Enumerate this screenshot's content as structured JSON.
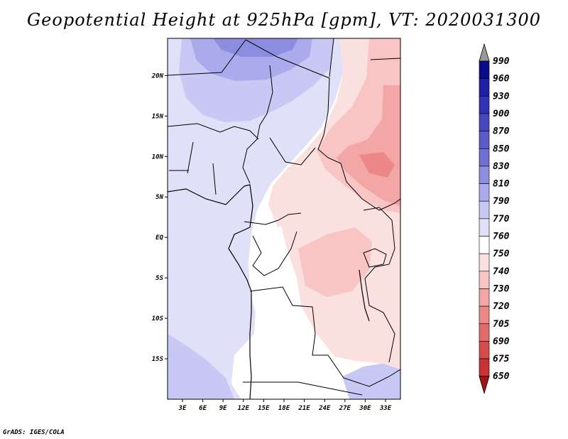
{
  "title": "Geopotential Height at 925hPa [gpm], VT: 2020031300",
  "credit": "GrADS: IGES/COLA",
  "lon_ticks": [
    "3E",
    "6E",
    "9E",
    "12E",
    "15E",
    "18E",
    "21E",
    "24E",
    "27E",
    "30E",
    "33E"
  ],
  "lat_ticks": [
    "20N",
    "15N",
    "10N",
    "5N",
    "EQ",
    "5S",
    "10S",
    "15S"
  ],
  "legend": {
    "levels": [
      "990",
      "960",
      "930",
      "900",
      "870",
      "850",
      "830",
      "810",
      "790",
      "770",
      "760",
      "750",
      "740",
      "730",
      "720",
      "705",
      "690",
      "675",
      "650"
    ],
    "colors": [
      "#0a0a8c",
      "#1e1ea8",
      "#3232b4",
      "#4646be",
      "#5a5ac8",
      "#7070d4",
      "#8c8ce0",
      "#aaaaec",
      "#c8c8f4",
      "#e0e0f8",
      "#ffffff",
      "#fbe0e0",
      "#f8c4c4",
      "#f2a6a6",
      "#ec8888",
      "#e26a6a",
      "#d64c4c",
      "#c83232",
      "#b41e1e"
    ],
    "top_arrow_color": "#999999",
    "bottom_arrow_color": "#a01414"
  },
  "chart_data": {
    "type": "heatmap",
    "title": "Geopotential Height at 925hPa [gpm], VT: 2020031300",
    "variable": "Geopotential Height",
    "level": "925hPa",
    "units": "gpm",
    "valid_time": "2020031300",
    "lon_range": [
      0.8,
      35.2
    ],
    "lat_range": [
      -20,
      24.6
    ],
    "xticks": [
      "3E",
      "6E",
      "9E",
      "12E",
      "15E",
      "18E",
      "21E",
      "24E",
      "27E",
      "30E",
      "33E"
    ],
    "yticks": [
      "20N",
      "15N",
      "10N",
      "5N",
      "EQ",
      "5S",
      "10S",
      "15S"
    ],
    "colorbar_levels": [
      990,
      960,
      930,
      900,
      870,
      850,
      830,
      810,
      790,
      770,
      760,
      750,
      740,
      730,
      720,
      705,
      690,
      675,
      650
    ]
  }
}
